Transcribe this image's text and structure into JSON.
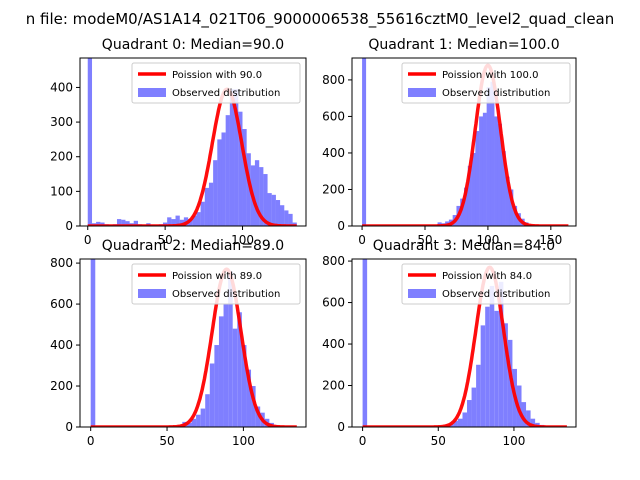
{
  "figure": {
    "suptitle": "n file: modeM0/AS1A14_021T06_9000006538_55616cztM0_level2_quad_clean"
  },
  "colors": {
    "bar": "#7f7fff",
    "curve": "#ff0000",
    "axis": "#000000",
    "background": "#ffffff"
  },
  "chart_data": [
    {
      "type": "bar",
      "title": "Quadrant 0: Median=90.0",
      "legend_position": "top-right",
      "legend": [
        "Poission with 90.0",
        "Observed distribution"
      ],
      "median": 90.0,
      "xlim": [
        -5,
        141
      ],
      "ylim": [
        0,
        485
      ],
      "xticks": [
        0,
        50,
        100
      ],
      "yticks": [
        0,
        100,
        200,
        300,
        400
      ],
      "bin_width": 2.77,
      "bins": [
        [
          0,
          485
        ],
        [
          2.7,
          8
        ],
        [
          5.4,
          12
        ],
        [
          8.1,
          10
        ],
        [
          10.8,
          5
        ],
        [
          13.5,
          3
        ],
        [
          16.2,
          5
        ],
        [
          18.9,
          20
        ],
        [
          21.6,
          18
        ],
        [
          24.3,
          14
        ],
        [
          27,
          8
        ],
        [
          29.7,
          15
        ],
        [
          32.4,
          5
        ],
        [
          35.1,
          3
        ],
        [
          37.8,
          8
        ],
        [
          40.5,
          4
        ],
        [
          43.2,
          3
        ],
        [
          45.9,
          5
        ],
        [
          48.6,
          10
        ],
        [
          51.3,
          25
        ],
        [
          54,
          20
        ],
        [
          56.7,
          30
        ],
        [
          59.4,
          18
        ],
        [
          62.1,
          25
        ],
        [
          64.8,
          20
        ],
        [
          67.5,
          30
        ],
        [
          70.2,
          40
        ],
        [
          72.9,
          70
        ],
        [
          75.6,
          110
        ],
        [
          78.3,
          125
        ],
        [
          81,
          190
        ],
        [
          83.7,
          250
        ],
        [
          86.4,
          270
        ],
        [
          89.1,
          320
        ],
        [
          91.8,
          395
        ],
        [
          94.5,
          395
        ],
        [
          97.2,
          330
        ],
        [
          99.9,
          280
        ],
        [
          102.6,
          210
        ],
        [
          105.3,
          175
        ],
        [
          108,
          190
        ],
        [
          110.7,
          170
        ],
        [
          113.4,
          150
        ],
        [
          116.1,
          95
        ],
        [
          118.8,
          90
        ],
        [
          121.5,
          75
        ],
        [
          124.2,
          60
        ],
        [
          126.9,
          45
        ],
        [
          129.6,
          35
        ],
        [
          132.3,
          10
        ]
      ],
      "curve": {
        "mean": 90.0,
        "peak": 395,
        "label": "Poission with 90.0"
      }
    },
    {
      "type": "bar",
      "title": "Quadrant 1: Median=100.0",
      "legend_position": "top-right",
      "legend": [
        "Poission with 100.0",
        "Observed distribution"
      ],
      "median": 100.0,
      "xlim": [
        -8,
        170
      ],
      "ylim": [
        0,
        920
      ],
      "xticks": [
        0,
        50,
        100,
        150
      ],
      "yticks": [
        0,
        200,
        400,
        600,
        800
      ],
      "bin_width": 3.2,
      "bins": [
        [
          0,
          920
        ],
        [
          60,
          20
        ],
        [
          63,
          15
        ],
        [
          66,
          25
        ],
        [
          69,
          35
        ],
        [
          72,
          60
        ],
        [
          75,
          110
        ],
        [
          78,
          150
        ],
        [
          81,
          210
        ],
        [
          84,
          330
        ],
        [
          87,
          400
        ],
        [
          90,
          520
        ],
        [
          93,
          600
        ],
        [
          96,
          620
        ],
        [
          99,
          760
        ],
        [
          102,
          790
        ],
        [
          105,
          600
        ],
        [
          108,
          560
        ],
        [
          111,
          410
        ],
        [
          114,
          270
        ],
        [
          117,
          200
        ],
        [
          120,
          110
        ],
        [
          123,
          70
        ],
        [
          126,
          40
        ],
        [
          129,
          20
        ],
        [
          132,
          10
        ]
      ],
      "curve": {
        "mean": 100.0,
        "peak": 880,
        "label": "Poission with 100.0"
      }
    },
    {
      "type": "bar",
      "title": "Quadrant 2: Median=89.0",
      "legend_position": "top-right",
      "legend": [
        "Poission with 89.0",
        "Observed distribution"
      ],
      "median": 89.0,
      "xlim": [
        -7,
        141
      ],
      "ylim": [
        0,
        820
      ],
      "xticks": [
        0,
        50,
        100
      ],
      "yticks": [
        0,
        200,
        400,
        600,
        800
      ],
      "bin_width": 3.0,
      "bins": [
        [
          0,
          820
        ],
        [
          57,
          10
        ],
        [
          60,
          25
        ],
        [
          63,
          20
        ],
        [
          66,
          40
        ],
        [
          69,
          60
        ],
        [
          72,
          90
        ],
        [
          75,
          160
        ],
        [
          78,
          310
        ],
        [
          81,
          400
        ],
        [
          84,
          540
        ],
        [
          87,
          600
        ],
        [
          90,
          760
        ],
        [
          93,
          480
        ],
        [
          96,
          560
        ],
        [
          99,
          400
        ],
        [
          102,
          280
        ],
        [
          105,
          200
        ],
        [
          108,
          100
        ],
        [
          111,
          70
        ],
        [
          114,
          40
        ],
        [
          117,
          20
        ],
        [
          120,
          10
        ]
      ],
      "curve": {
        "mean": 89.0,
        "peak": 770,
        "label": "Poission with 89.0"
      }
    },
    {
      "type": "bar",
      "title": "Quadrant 3: Median=84.0",
      "legend_position": "top-right",
      "legend": [
        "Poission with 84.0",
        "Observed distribution"
      ],
      "median": 84.0,
      "xlim": [
        -7,
        141
      ],
      "ylim": [
        0,
        810
      ],
      "xticks": [
        0,
        50,
        100
      ],
      "yticks": [
        0,
        200,
        400,
        600,
        800
      ],
      "bin_width": 3.0,
      "bins": [
        [
          0,
          810
        ],
        [
          54,
          10
        ],
        [
          57,
          15
        ],
        [
          60,
          30
        ],
        [
          63,
          40
        ],
        [
          66,
          70
        ],
        [
          69,
          130
        ],
        [
          72,
          190
        ],
        [
          75,
          300
        ],
        [
          78,
          490
        ],
        [
          81,
          580
        ],
        [
          84,
          680
        ],
        [
          87,
          560
        ],
        [
          90,
          700
        ],
        [
          93,
          500
        ],
        [
          96,
          420
        ],
        [
          99,
          280
        ],
        [
          102,
          200
        ],
        [
          105,
          120
        ],
        [
          108,
          80
        ],
        [
          111,
          40
        ],
        [
          114,
          20
        ],
        [
          117,
          10
        ]
      ],
      "curve": {
        "mean": 84.0,
        "peak": 770,
        "label": "Poission with 84.0"
      }
    }
  ]
}
